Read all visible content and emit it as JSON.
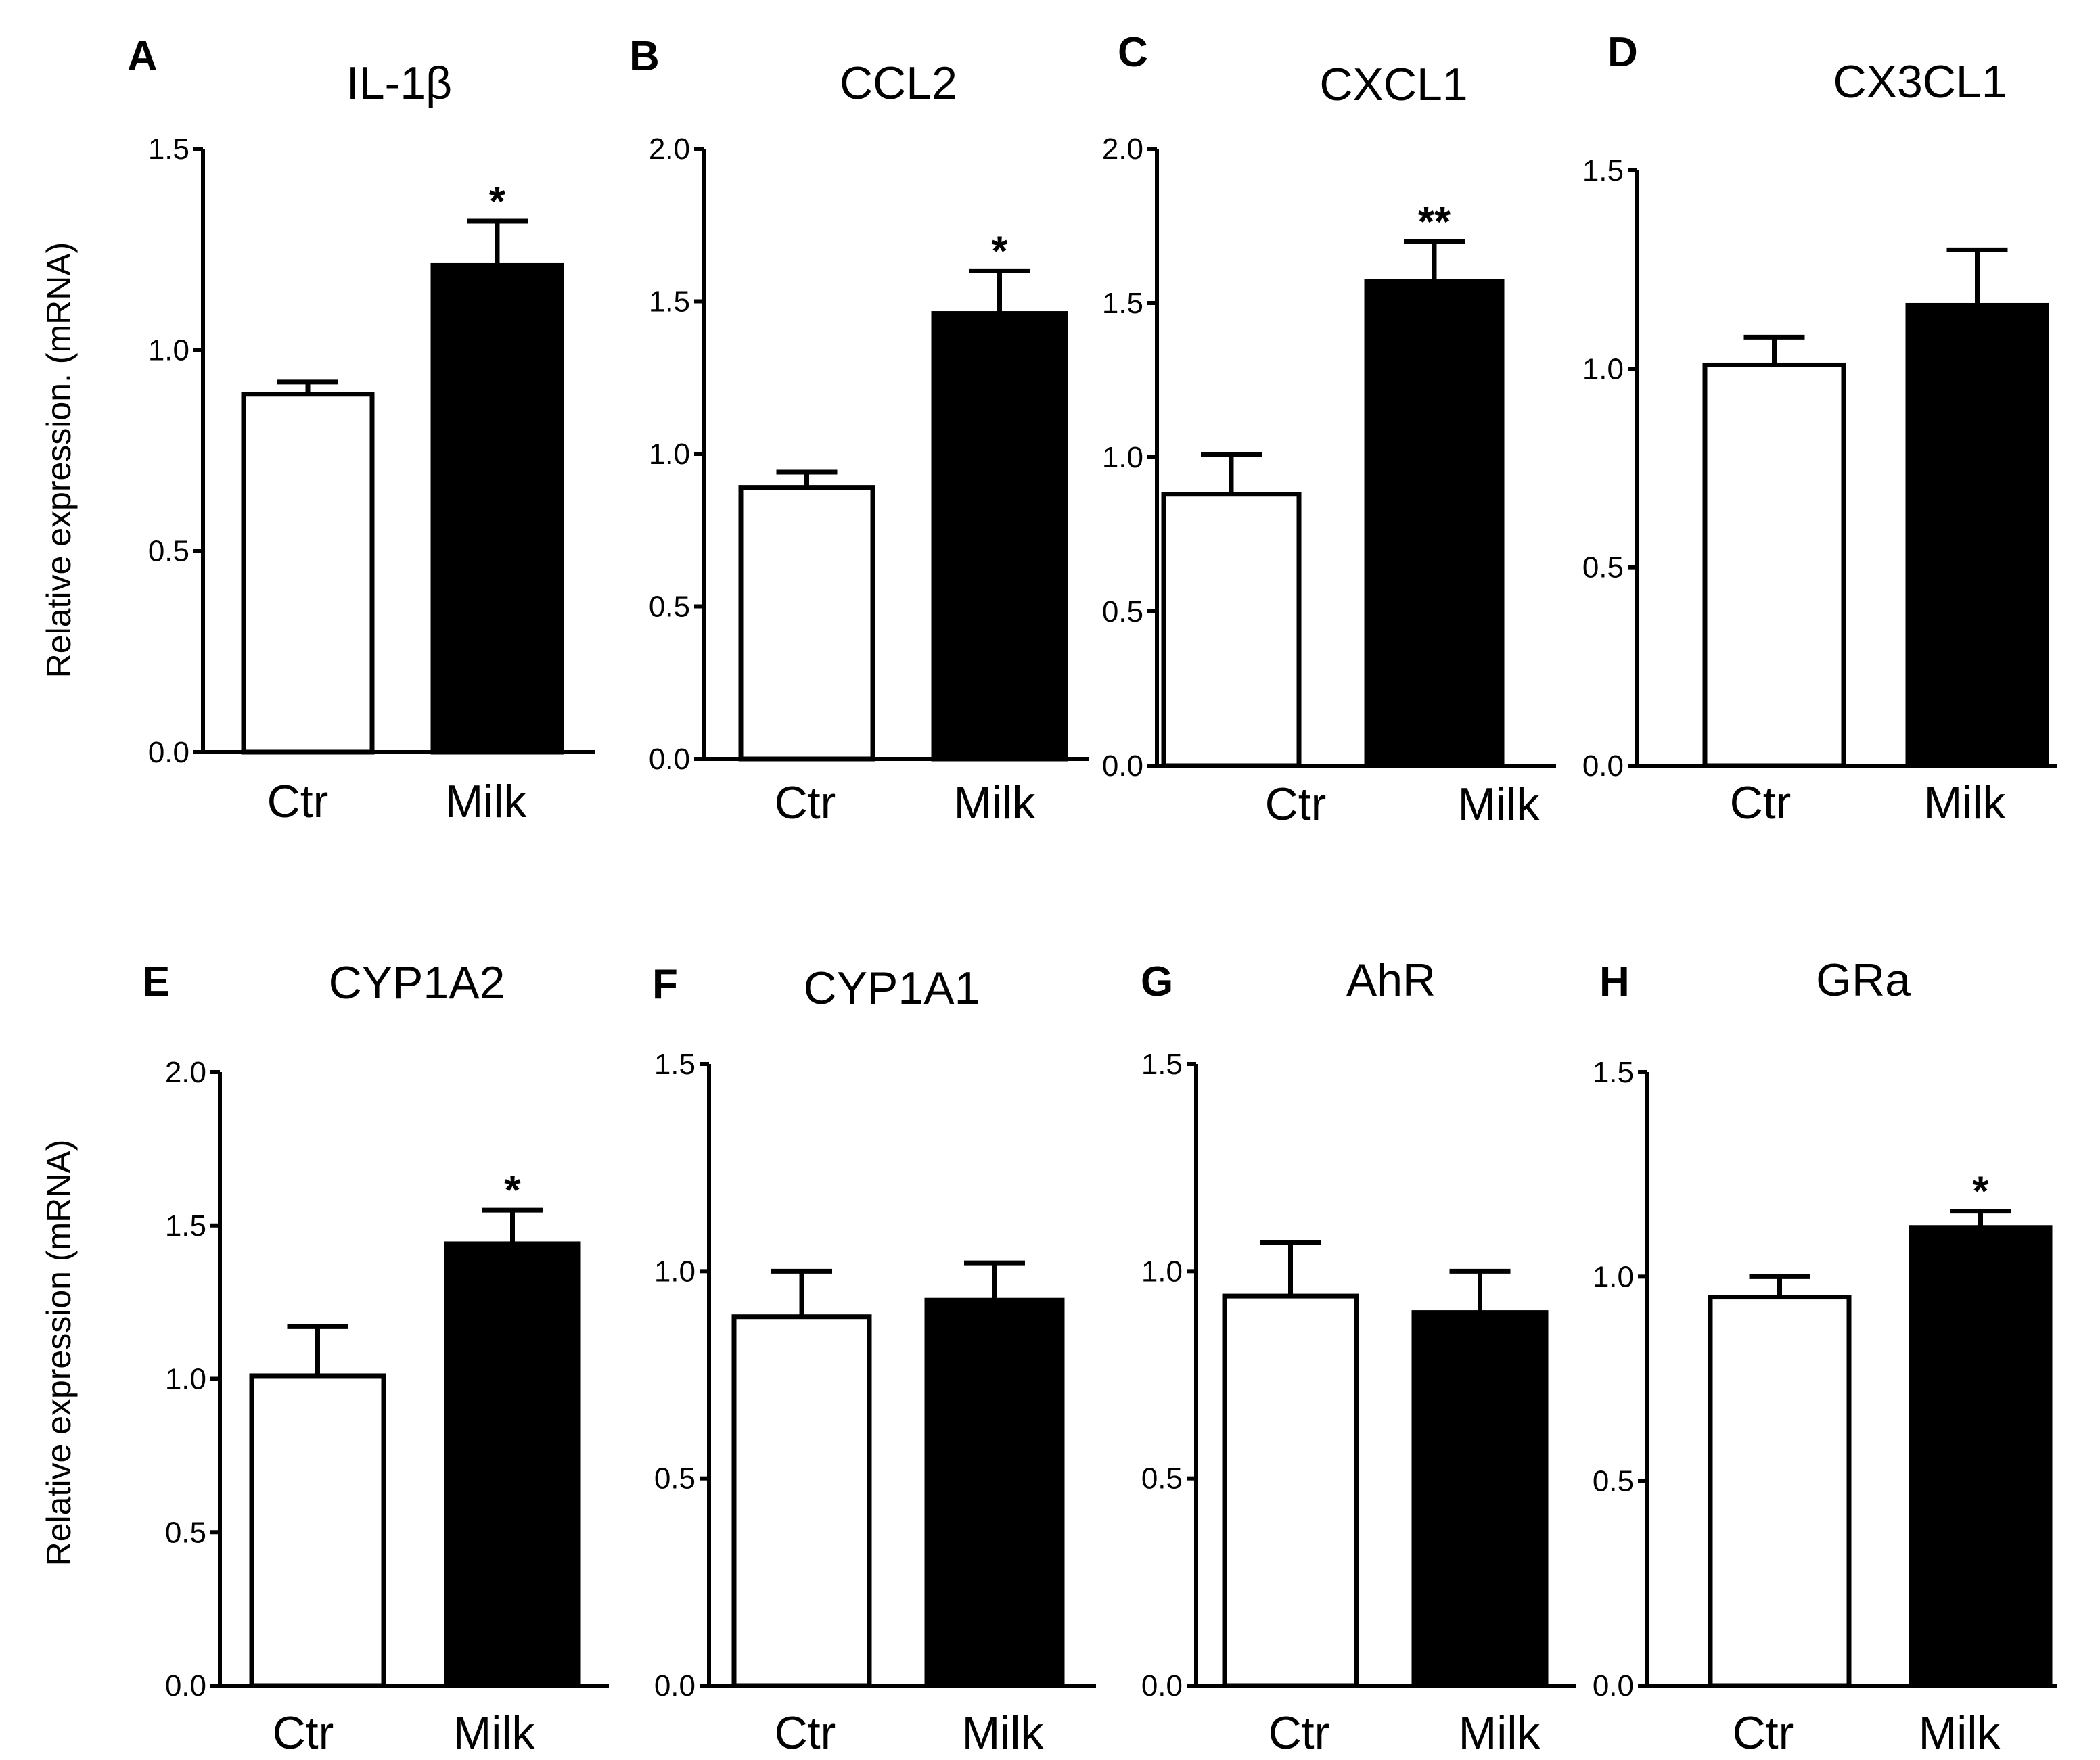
{
  "chart_data": [
    {
      "panel": "A",
      "title": "IL-1β",
      "type": "bar",
      "categories": [
        "Ctr",
        "Milk"
      ],
      "values": [
        0.89,
        1.21
      ],
      "errors": [
        0.03,
        0.11
      ],
      "significance": [
        "",
        "*"
      ],
      "ylim": [
        0,
        1.5
      ],
      "yticks": [
        0.0,
        0.5,
        1.0,
        1.5
      ],
      "ytick_labels": [
        "0.0",
        "0.5",
        "1.0",
        "1.5"
      ],
      "fills": [
        "#ffffff",
        "#000000"
      ]
    },
    {
      "panel": "B",
      "title": "CCL2",
      "type": "bar",
      "categories": [
        "Ctr",
        "Milk"
      ],
      "values": [
        0.89,
        1.46
      ],
      "errors": [
        0.05,
        0.14
      ],
      "significance": [
        "",
        "*"
      ],
      "ylim": [
        0,
        2.0
      ],
      "yticks": [
        0.0,
        0.5,
        1.0,
        1.5,
        2.0
      ],
      "ytick_labels": [
        "0.0",
        "0.5",
        "1.0",
        "1.5",
        "2.0"
      ],
      "fills": [
        "#ffffff",
        "#000000"
      ]
    },
    {
      "panel": "C",
      "title": "CXCL1",
      "type": "bar",
      "categories": [
        "Ctr",
        "Milk"
      ],
      "values": [
        0.88,
        1.57
      ],
      "errors": [
        0.13,
        0.13
      ],
      "significance": [
        "",
        "**"
      ],
      "ylim": [
        0,
        2.0
      ],
      "yticks": [
        0.0,
        0.5,
        1.0,
        1.5,
        2.0
      ],
      "ytick_labels": [
        "0.0",
        "0.5",
        "1.0",
        "1.5",
        "2.0"
      ],
      "fills": [
        "#ffffff",
        "#000000"
      ]
    },
    {
      "panel": "D",
      "title": "CX3CL1",
      "type": "bar",
      "categories": [
        "Ctr",
        "Milk"
      ],
      "values": [
        1.01,
        1.16
      ],
      "errors": [
        0.07,
        0.14
      ],
      "significance": [
        "",
        ""
      ],
      "ylim": [
        0,
        1.5
      ],
      "yticks": [
        0.0,
        0.5,
        1.0,
        1.5
      ],
      "ytick_labels": [
        "0.0",
        "0.5",
        "1.0",
        "1.5"
      ],
      "fills": [
        "#ffffff",
        "#000000"
      ]
    },
    {
      "panel": "E",
      "title": "CYP1A2",
      "type": "bar",
      "categories": [
        "Ctr",
        "Milk"
      ],
      "values": [
        1.01,
        1.44
      ],
      "errors": [
        0.16,
        0.11
      ],
      "significance": [
        "",
        "*"
      ],
      "ylim": [
        0,
        2.0
      ],
      "yticks": [
        0.0,
        0.5,
        1.0,
        1.5,
        2.0
      ],
      "ytick_labels": [
        "0.0",
        "0.5",
        "1.0",
        "1.5",
        "2.0"
      ],
      "fills": [
        "#ffffff",
        "#000000"
      ]
    },
    {
      "panel": "F",
      "title": "CYP1A1",
      "type": "bar",
      "categories": [
        "Ctr",
        "Milk"
      ],
      "values": [
        0.89,
        0.93
      ],
      "errors": [
        0.11,
        0.09
      ],
      "significance": [
        "",
        ""
      ],
      "ylim": [
        0,
        1.5
      ],
      "yticks": [
        0.0,
        0.5,
        1.0,
        1.5
      ],
      "ytick_labels": [
        "0.0",
        "0.5",
        "1.0",
        "1.5"
      ],
      "fills": [
        "#ffffff",
        "#000000"
      ]
    },
    {
      "panel": "G",
      "title": "AhR",
      "type": "bar",
      "categories": [
        "Ctr",
        "Milk"
      ],
      "values": [
        0.94,
        0.9
      ],
      "errors": [
        0.13,
        0.1
      ],
      "significance": [
        "",
        ""
      ],
      "ylim": [
        0,
        1.5
      ],
      "yticks": [
        0.0,
        0.5,
        1.0,
        1.5
      ],
      "ytick_labels": [
        "0.0",
        "0.5",
        "1.0",
        "1.5"
      ],
      "fills": [
        "#ffffff",
        "#000000"
      ]
    },
    {
      "panel": "H",
      "title": "GRa",
      "type": "bar",
      "categories": [
        "Ctr",
        "Milk"
      ],
      "values": [
        0.95,
        1.12
      ],
      "errors": [
        0.05,
        0.04
      ],
      "significance": [
        "",
        "*"
      ],
      "ylim": [
        0,
        1.5
      ],
      "yticks": [
        0.0,
        0.5,
        1.0,
        1.5
      ],
      "ytick_labels": [
        "0.0",
        "0.5",
        "1.0",
        "1.5"
      ],
      "fills": [
        "#ffffff",
        "#000000"
      ]
    }
  ],
  "ylabels": [
    "Relative expression. (mRNA)",
    "Relative expression (mRNA)"
  ]
}
